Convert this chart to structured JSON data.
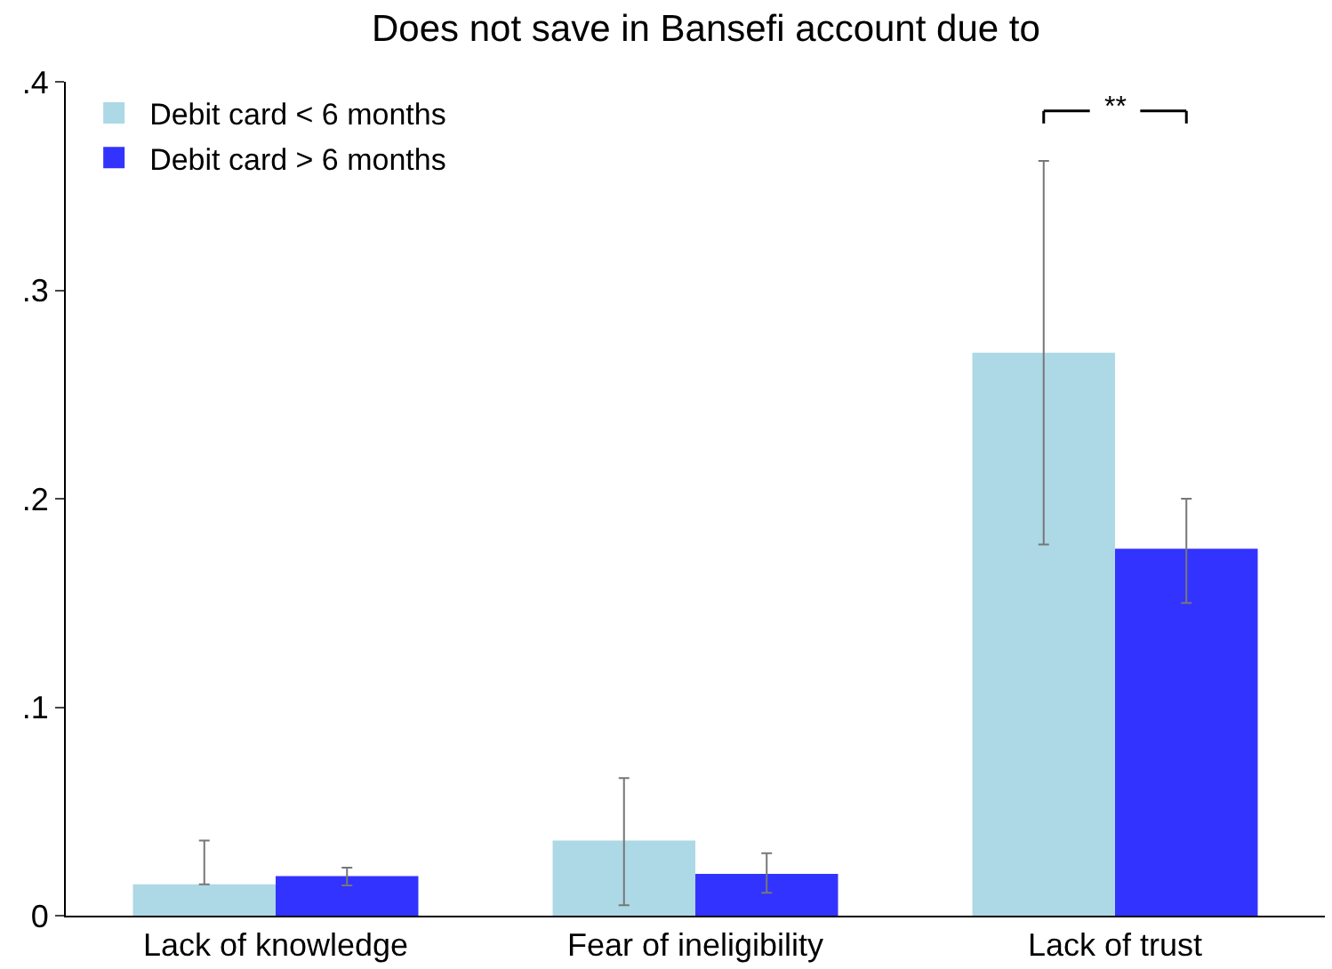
{
  "chart_data": {
    "type": "bar",
    "title": "Does not save in Bansefi account due to",
    "categories": [
      "Lack of knowledge",
      "Fear of ineligibility",
      "Lack of trust"
    ],
    "series": [
      {
        "name": "Debit card < 6 months",
        "color": "#add8e6",
        "values": [
          0.015,
          0.036,
          0.27
        ],
        "errors": [
          [
            0.015,
            0.036
          ],
          [
            0.005,
            0.066
          ],
          [
            0.178,
            0.362
          ]
        ]
      },
      {
        "name": "Debit card > 6 months",
        "color": "#3333ff",
        "values": [
          0.019,
          0.02,
          0.176
        ],
        "errors": [
          [
            0.0145,
            0.023
          ],
          [
            0.011,
            0.03
          ],
          [
            0.15,
            0.2
          ]
        ]
      }
    ],
    "ylim": [
      0,
      0.4
    ],
    "yticks": [
      0,
      {
        "value": 0.1,
        "label": ".1"
      },
      {
        "value": 0.2,
        "label": ".2"
      },
      {
        "value": 0.3,
        "label": ".3"
      },
      {
        "value": 0.4,
        "label": ".4"
      }
    ],
    "annotations": [
      "**"
    ],
    "grid": false,
    "legend": "top left"
  }
}
